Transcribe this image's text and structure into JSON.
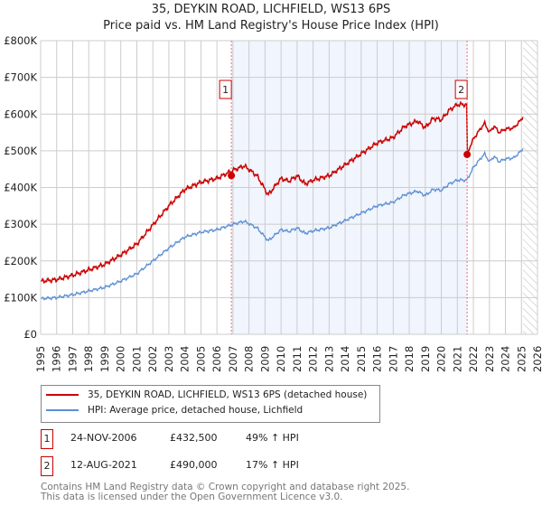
{
  "title": "35, DEYKIN ROAD, LICHFIELD, WS13 6PS",
  "subtitle": "Price paid vs. HM Land Registry's House Price Index (HPI)",
  "chart_data": {
    "type": "line",
    "title": "35, DEYKIN ROAD, LICHFIELD, WS13 6PS",
    "ylim": [
      0,
      800000
    ],
    "xlim": [
      1995,
      2026
    ],
    "yticks": [
      {
        "v": 0,
        "l": "£0"
      },
      {
        "v": 100000,
        "l": "£100K"
      },
      {
        "v": 200000,
        "l": "£200K"
      },
      {
        "v": 300000,
        "l": "£300K"
      },
      {
        "v": 400000,
        "l": "£400K"
      },
      {
        "v": 500000,
        "l": "£500K"
      },
      {
        "v": 600000,
        "l": "£600K"
      },
      {
        "v": 700000,
        "l": "£700K"
      },
      {
        "v": 800000,
        "l": "£800K"
      }
    ],
    "xticks": [
      "1995",
      "1996",
      "1997",
      "1998",
      "1999",
      "2000",
      "2001",
      "2002",
      "2003",
      "2004",
      "2005",
      "2006",
      "2007",
      "2008",
      "2009",
      "2010",
      "2011",
      "2012",
      "2013",
      "2014",
      "2015",
      "2016",
      "2017",
      "2018",
      "2019",
      "2020",
      "2021",
      "2022",
      "2023",
      "2024",
      "2025",
      "2026"
    ],
    "series": [
      {
        "name": "HPI: Average price, detached house, Lichfield",
        "color": "#5b8fd4",
        "x": [
          1995,
          1996,
          1997,
          1998,
          1999,
          2000,
          2001,
          2002,
          2003,
          2004,
          2005,
          2006,
          2007,
          2007.7,
          2008.5,
          2009.2,
          2010,
          2010.5,
          2011,
          2011.5,
          2012,
          2013,
          2014,
          2015,
          2016,
          2017,
          2017.7,
          2018.5,
          2019,
          2019.5,
          2020,
          2020.5,
          2021,
          2021.6,
          2022,
          2022.7,
          2023,
          2023.3,
          2023.6,
          2024,
          2024.5,
          2025,
          2025.1
        ],
        "y": [
          97000,
          100000,
          108000,
          118000,
          128000,
          145000,
          165000,
          200000,
          235000,
          265000,
          278000,
          285000,
          300000,
          308000,
          290000,
          255000,
          285000,
          280000,
          290000,
          275000,
          282000,
          290000,
          310000,
          330000,
          350000,
          360000,
          380000,
          390000,
          378000,
          395000,
          392000,
          410000,
          420000,
          420000,
          455000,
          492000,
          470000,
          485000,
          470000,
          478000,
          480000,
          500000,
          510000
        ]
      },
      {
        "name": "35, DEYKIN ROAD, LICHFIELD, WS13 6PS (detached house)",
        "color": "#cc0000"
      }
    ],
    "sales": [
      {
        "id": "1",
        "x": 2006.9,
        "price": 432500
      },
      {
        "id": "2",
        "x": 2021.61,
        "price": 490000
      }
    ],
    "shaded_range": [
      2006.9,
      2021.61
    ],
    "forecast_hatch_from": 2025.1
  },
  "legend": [
    "35, DEYKIN ROAD, LICHFIELD, WS13 6PS (detached house)",
    "HPI: Average price, detached house, Lichfield"
  ],
  "transactions": [
    {
      "id": "1",
      "date": "24-NOV-2006",
      "price": "£432,500",
      "hpi": "49% ↑ HPI"
    },
    {
      "id": "2",
      "date": "12-AUG-2021",
      "price": "£490,000",
      "hpi": "17% ↑ HPI"
    }
  ],
  "footer": [
    "Contains HM Land Registry data © Crown copyright and database right 2025.",
    "This data is licensed under the Open Government Licence v3.0."
  ]
}
